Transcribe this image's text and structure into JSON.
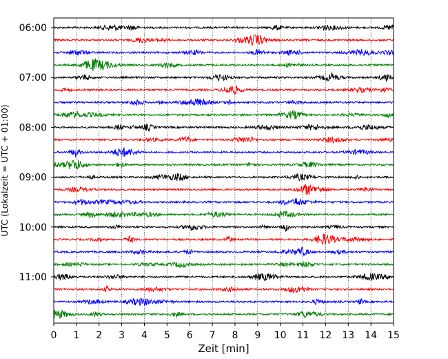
{
  "chart_data": {
    "type": "line",
    "title": "",
    "xlabel": "Zeit  [min]",
    "ylabel": "UTC (Lokalzeit = UTC + 01:00)",
    "xlim": [
      0,
      15
    ],
    "x_ticks": [
      0,
      1,
      2,
      3,
      4,
      5,
      6,
      7,
      8,
      9,
      10,
      11,
      12,
      13,
      14,
      15
    ],
    "x_tick_labels": [
      "0",
      "1",
      "2",
      "3",
      "4",
      "5",
      "6",
      "7",
      "8",
      "9",
      "10",
      "11",
      "12",
      "13",
      "14",
      "15"
    ],
    "grid": "vertical dotted",
    "row_interval_minutes": 15,
    "y_tick_labels": [
      "06:00",
      "07:00",
      "08:00",
      "09:00",
      "10:00",
      "11:00"
    ],
    "color_cycle": [
      "#000000",
      "#ff0000",
      "#0000ff",
      "#008000"
    ],
    "rows": [
      {
        "start": "06:00",
        "color": "#000000"
      },
      {
        "start": "06:15",
        "color": "#ff0000"
      },
      {
        "start": "06:30",
        "color": "#0000ff"
      },
      {
        "start": "06:45",
        "color": "#008000"
      },
      {
        "start": "07:00",
        "color": "#000000"
      },
      {
        "start": "07:15",
        "color": "#ff0000"
      },
      {
        "start": "07:30",
        "color": "#0000ff"
      },
      {
        "start": "07:45",
        "color": "#008000"
      },
      {
        "start": "08:00",
        "color": "#000000"
      },
      {
        "start": "08:15",
        "color": "#ff0000"
      },
      {
        "start": "08:30",
        "color": "#0000ff"
      },
      {
        "start": "08:45",
        "color": "#008000"
      },
      {
        "start": "09:00",
        "color": "#000000"
      },
      {
        "start": "09:15",
        "color": "#ff0000"
      },
      {
        "start": "09:30",
        "color": "#0000ff"
      },
      {
        "start": "09:45",
        "color": "#008000"
      },
      {
        "start": "10:00",
        "color": "#000000"
      },
      {
        "start": "10:15",
        "color": "#ff0000"
      },
      {
        "start": "10:30",
        "color": "#0000ff"
      },
      {
        "start": "10:45",
        "color": "#008000"
      },
      {
        "start": "11:00",
        "color": "#000000"
      },
      {
        "start": "11:15",
        "color": "#ff0000"
      },
      {
        "start": "11:30",
        "color": "#0000ff"
      },
      {
        "start": "11:45",
        "color": "#008000"
      }
    ]
  }
}
